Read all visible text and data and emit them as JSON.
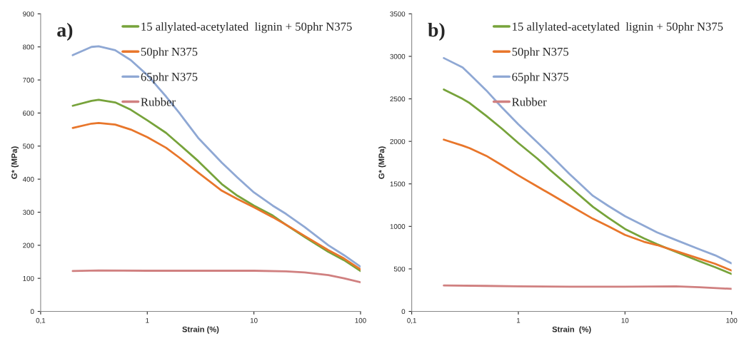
{
  "chart_data": [
    {
      "type": "line",
      "annotations": [
        "a)"
      ],
      "xlabel": "Strain (%)",
      "ylabel": "G* (MPa)",
      "log": "x",
      "xlim": [
        0.1,
        100
      ],
      "xticks": [
        {
          "value": 0.1,
          "label": "0,1"
        },
        1,
        10,
        100
      ],
      "ylim": [
        0,
        900
      ],
      "yticks": [
        0,
        100,
        200,
        300,
        400,
        500,
        600,
        700,
        800,
        900
      ],
      "grid": false,
      "legend": "top right",
      "marker": "none",
      "line_style": "solid",
      "x": [
        0.2,
        0.3,
        0.35,
        0.5,
        0.7,
        1,
        1.5,
        2,
        3,
        5,
        7,
        10,
        15,
        20,
        30,
        50,
        70,
        100
      ],
      "series": [
        {
          "name": "15 allylated-acetylated  lignin + 50phr N375",
          "color": "#77a33b",
          "values": [
            622,
            637,
            640,
            632,
            610,
            578,
            540,
            505,
            455,
            385,
            350,
            320,
            290,
            262,
            225,
            180,
            155,
            122
          ]
        },
        {
          "name": "50phr N375",
          "color": "#e8762b",
          "values": [
            555,
            568,
            570,
            565,
            550,
            527,
            495,
            465,
            420,
            365,
            340,
            315,
            285,
            262,
            228,
            185,
            160,
            127
          ]
        },
        {
          "name": "65phr N375",
          "color": "#8fa8d4",
          "values": [
            775,
            800,
            802,
            790,
            760,
            715,
            650,
            600,
            525,
            450,
            405,
            360,
            320,
            295,
            255,
            200,
            170,
            135
          ]
        },
        {
          "name": "Rubber",
          "color": "#d08080",
          "x": [
            0.2,
            0.35,
            1,
            3,
            10,
            20,
            30,
            50,
            70,
            100
          ],
          "values": [
            122,
            124,
            123,
            123,
            123,
            121,
            118,
            110,
            100,
            88
          ]
        }
      ]
    },
    {
      "type": "line",
      "annotations": [
        "b)"
      ],
      "xlabel": "Strain  (%)",
      "ylabel": "G* (MPa)",
      "log": "x",
      "xlim": [
        0.1,
        100
      ],
      "xticks": [
        {
          "value": 0.1,
          "label": "0,1"
        },
        1,
        10,
        100
      ],
      "ylim": [
        0,
        3500
      ],
      "yticks": [
        0,
        500,
        1000,
        1500,
        2000,
        2500,
        3000,
        3500
      ],
      "grid": false,
      "legend": "top right",
      "marker": "none",
      "line_style": "solid",
      "x": [
        0.2,
        0.3,
        0.35,
        0.5,
        0.7,
        1,
        1.5,
        2,
        3,
        5,
        7,
        10,
        15,
        20,
        30,
        50,
        70,
        100
      ],
      "series": [
        {
          "name": "15 allylated-acetylated  lignin + 50phr N375",
          "color": "#77a33b",
          "values": [
            2610,
            2500,
            2450,
            2300,
            2150,
            1980,
            1800,
            1660,
            1470,
            1230,
            1100,
            970,
            860,
            790,
            700,
            590,
            520,
            440
          ]
        },
        {
          "name": "50phr N375",
          "color": "#e8762b",
          "values": [
            2020,
            1950,
            1920,
            1830,
            1720,
            1600,
            1470,
            1380,
            1250,
            1090,
            1000,
            900,
            820,
            780,
            710,
            620,
            560,
            480
          ]
        },
        {
          "name": "65phr N375",
          "color": "#8fa8d4",
          "values": [
            2980,
            2870,
            2790,
            2600,
            2400,
            2200,
            1990,
            1840,
            1620,
            1360,
            1240,
            1120,
            1010,
            930,
            840,
            730,
            660,
            565
          ]
        },
        {
          "name": "Rubber",
          "color": "#d08080",
          "x": [
            0.2,
            0.5,
            1,
            3,
            10,
            30,
            50,
            100
          ],
          "values": [
            305,
            300,
            295,
            290,
            290,
            295,
            285,
            265
          ]
        }
      ]
    }
  ]
}
